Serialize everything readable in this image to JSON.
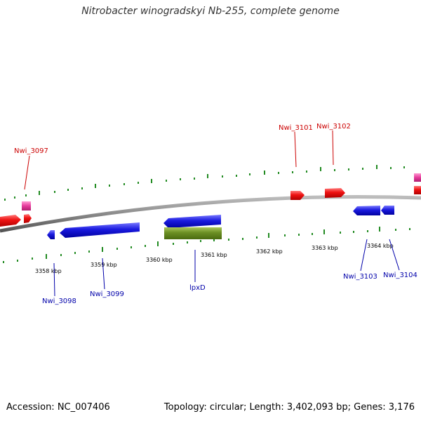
{
  "title": "Nitrobacter winogradskyi Nb-255, complete genome",
  "footer": {
    "accession": "Accession: NC_007406",
    "genome_info": "Topology: circular; Length: 3,402,093 bp; Genes: 3,176"
  },
  "ticks": [
    "3358 kbp",
    "3359 kbp",
    "3360 kbp",
    "3361 kbp",
    "3362 kbp",
    "3363 kbp",
    "3364 kbp"
  ],
  "gene_labels": {
    "top": [
      "Nwi_3097",
      "Nwi_3101",
      "Nwi_3102"
    ],
    "bottom": [
      "Nwi_3098",
      "Nwi_3099",
      "lpxD",
      "Nwi_3103",
      "Nwi_3104"
    ]
  },
  "colors": {
    "forward_gene": "#ee1111",
    "reverse_gene": "#1a1adf",
    "rna_gene": "#e63b9c",
    "highlight_gene": "#6b8e23",
    "backbone": "#8a8a8a",
    "tick": "#228b22",
    "top_label": "#cc0000",
    "bottom_label": "#0000aa"
  }
}
